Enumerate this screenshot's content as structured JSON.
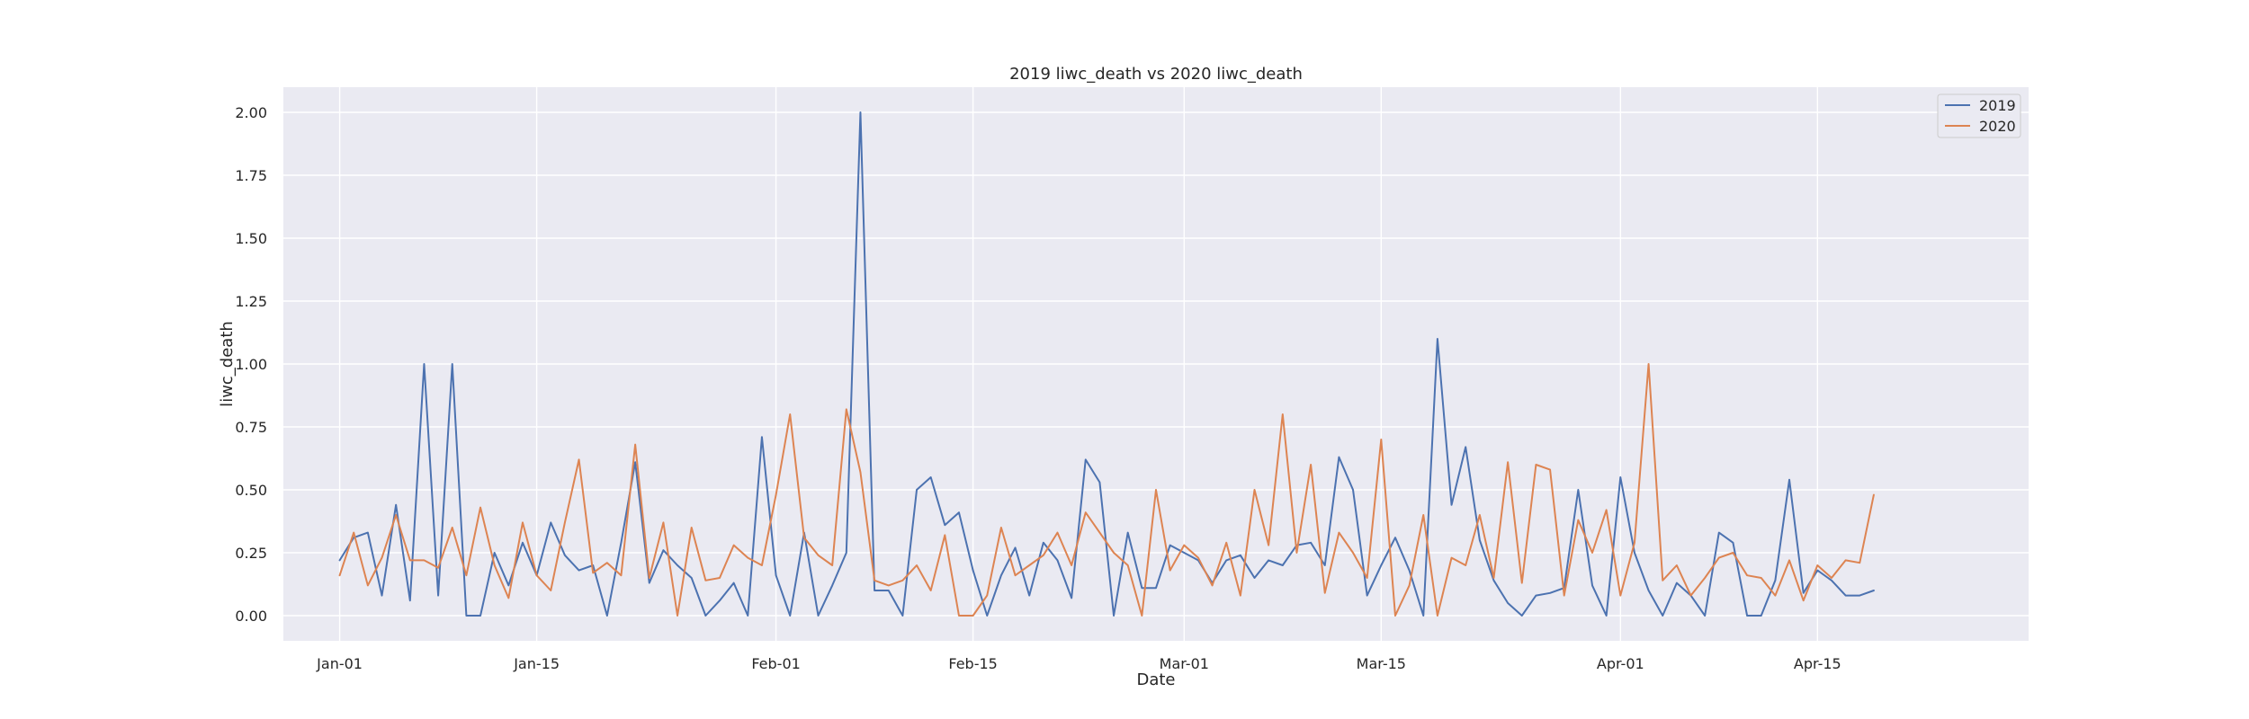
{
  "chart_data": {
    "type": "line",
    "title": "2019 liwc_death vs 2020 liwc_death",
    "xlabel": "Date",
    "ylabel": "liwc_death",
    "x_start": "Jan-01",
    "x_end": "Apr-20",
    "xlim": [
      "Dec-28",
      "Apr-30"
    ],
    "ylim": [
      -0.1,
      2.1
    ],
    "grid": true,
    "legend_position": "top-right",
    "x_ticks": [
      "Jan-01",
      "Jan-15",
      "Feb-01",
      "Feb-15",
      "Mar-01",
      "Mar-15",
      "Apr-01",
      "Apr-15"
    ],
    "y_ticks": [
      "0.00",
      "0.25",
      "0.50",
      "0.75",
      "1.00",
      "1.25",
      "1.50",
      "1.75",
      "2.00"
    ],
    "colors": {
      "background": "#eaeaf2",
      "grid": "#ffffff"
    },
    "series": [
      {
        "name": "2019",
        "color": "#4c72b0",
        "values": [
          0.22,
          0.31,
          0.33,
          0.08,
          0.44,
          0.06,
          1.0,
          0.08,
          1.0,
          0.0,
          0.0,
          0.25,
          0.12,
          0.29,
          0.16,
          0.37,
          0.24,
          0.18,
          0.2,
          0.0,
          0.29,
          0.61,
          0.13,
          0.26,
          0.2,
          0.15,
          0.0,
          0.06,
          0.13,
          0.0,
          0.71,
          0.16,
          0.0,
          0.33,
          0.0,
          0.12,
          0.25,
          2.0,
          0.1,
          0.1,
          0.0,
          0.5,
          0.55,
          0.36,
          0.41,
          0.18,
          0.0,
          0.16,
          0.27,
          0.08,
          0.29,
          0.22,
          0.07,
          0.62,
          0.53,
          0.0,
          0.33,
          0.11,
          0.11,
          0.28,
          0.25,
          0.22,
          0.13,
          0.22,
          0.24,
          0.15,
          0.22,
          0.2,
          0.28,
          0.29,
          0.2,
          0.63,
          0.5,
          0.08,
          0.2,
          0.31,
          0.18,
          0.0,
          1.1,
          0.44,
          0.67,
          0.3,
          0.14,
          0.05,
          0.0,
          0.08,
          0.09,
          0.11,
          0.5,
          0.12,
          0.0,
          0.55,
          0.25,
          0.1,
          0.0,
          0.13,
          0.08,
          0.0,
          0.33,
          0.29,
          0.0,
          0.0,
          0.14,
          0.54,
          0.09,
          0.18,
          0.14,
          0.08,
          0.08,
          0.1
        ]
      },
      {
        "name": "2020",
        "color": "#dd8452",
        "values": [
          0.16,
          0.33,
          0.12,
          0.23,
          0.4,
          0.22,
          0.22,
          0.19,
          0.35,
          0.16,
          0.43,
          0.2,
          0.07,
          0.37,
          0.16,
          0.1,
          0.37,
          0.62,
          0.17,
          0.21,
          0.16,
          0.68,
          0.15,
          0.37,
          0.0,
          0.35,
          0.14,
          0.15,
          0.28,
          0.23,
          0.2,
          0.48,
          0.8,
          0.31,
          0.24,
          0.2,
          0.82,
          0.57,
          0.14,
          0.12,
          0.14,
          0.2,
          0.1,
          0.32,
          0.0,
          0.0,
          0.08,
          0.35,
          0.16,
          0.2,
          0.24,
          0.33,
          0.2,
          0.41,
          0.33,
          0.25,
          0.2,
          0.0,
          0.5,
          0.18,
          0.28,
          0.23,
          0.12,
          0.29,
          0.08,
          0.5,
          0.28,
          0.8,
          0.25,
          0.6,
          0.09,
          0.33,
          0.25,
          0.15,
          0.7,
          0.0,
          0.12,
          0.4,
          0.0,
          0.23,
          0.2,
          0.4,
          0.15,
          0.61,
          0.13,
          0.6,
          0.58,
          0.08,
          0.38,
          0.25,
          0.42,
          0.08,
          0.29,
          1.0,
          0.14,
          0.2,
          0.08,
          0.15,
          0.23,
          0.25,
          0.16,
          0.15,
          0.08,
          0.22,
          0.06,
          0.2,
          0.15,
          0.22,
          0.21,
          0.48
        ]
      }
    ]
  }
}
